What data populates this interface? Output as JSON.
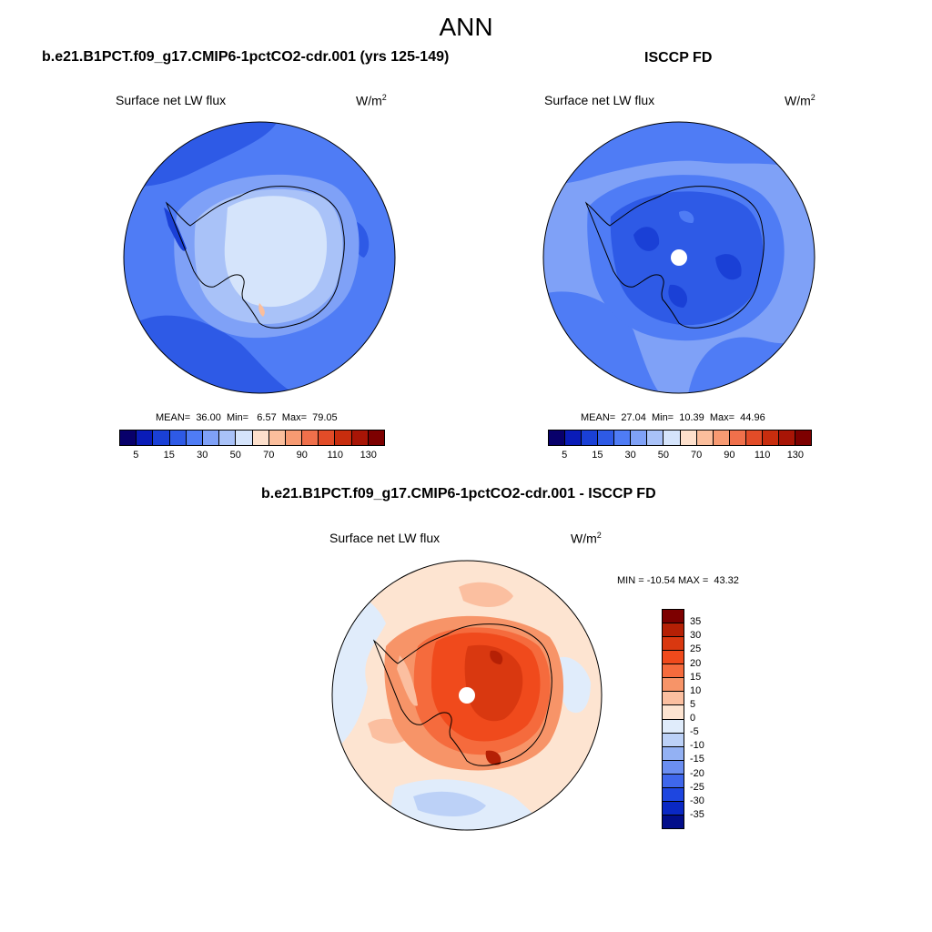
{
  "main_title": "ANN",
  "panels": {
    "model": {
      "title": "b.e21.B1PCT.f09_g17.CMIP6-1pctCO2-cdr.001 (yrs 125-149)",
      "variable": "Surface net LW flux",
      "units_base": "W/m",
      "units_exp": "2",
      "stats": "MEAN=  36.00  Min=   6.57  Max=  79.05"
    },
    "obs": {
      "title": "ISCCP FD",
      "variable": "Surface net LW flux",
      "units_base": "W/m",
      "units_exp": "2",
      "stats": "MEAN=  27.04  Min=  10.39  Max=  44.96"
    },
    "diff": {
      "title": "b.e21.B1PCT.f09_g17.CMIP6-1pctCO2-cdr.001 - ISCCP FD",
      "variable": "Surface net LW flux",
      "units_base": "W/m",
      "units_exp": "2",
      "stats": "MIN = -10.54 MAX =  43.32"
    }
  },
  "colorbars": {
    "abs": {
      "colors": [
        "#08006b",
        "#0a1cb8",
        "#1a40d6",
        "#2e5ae6",
        "#4f7cf5",
        "#7fa1f7",
        "#a9c2f8",
        "#d5e4fb",
        "#fde0cc",
        "#fbbe9c",
        "#f79a72",
        "#f0704b",
        "#e24c28",
        "#c82d0e",
        "#a81506",
        "#7d0000"
      ],
      "tick_labels": [
        "5",
        "15",
        "30",
        "50",
        "70",
        "90",
        "110",
        "130"
      ]
    },
    "diff": {
      "colors": [
        "#7d0000",
        "#b52005",
        "#d93810",
        "#f04a1c",
        "#f56b3d",
        "#f79468",
        "#fbbfa0",
        "#fde4d1",
        "#e0ecfb",
        "#bcd1f7",
        "#93b1f3",
        "#6b8ef1",
        "#3f67ec",
        "#1e46e0",
        "#0a28c4",
        "#020e8a"
      ],
      "tick_labels": [
        "35",
        "30",
        "25",
        "20",
        "15",
        "10",
        "5",
        "0",
        "-5",
        "-10",
        "-15",
        "-20",
        "-25",
        "-30",
        "-35"
      ]
    }
  }
}
